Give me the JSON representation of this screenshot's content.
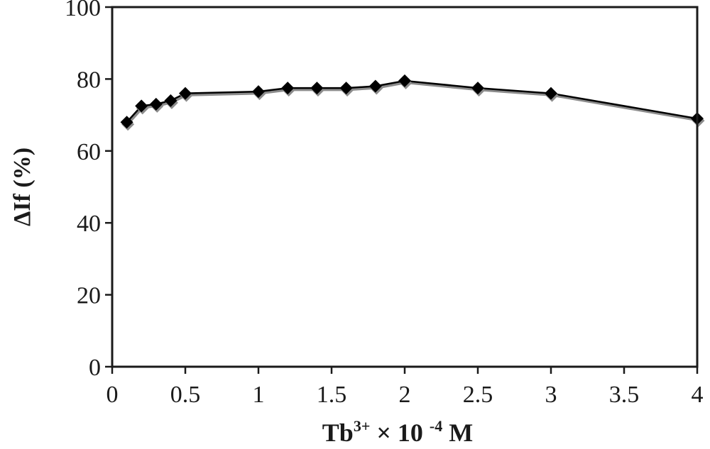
{
  "chart_data": {
    "type": "line",
    "title": "",
    "ylabel": "ΔIf (%)",
    "xlabel": {
      "base": "Tb",
      "sup": "3+",
      "middle": " × 10 ",
      "exp": "-4",
      "unit": " M"
    },
    "xlim": [
      0,
      4
    ],
    "ylim": [
      0,
      100
    ],
    "x_ticks": [
      0,
      0.5,
      1,
      1.5,
      2,
      2.5,
      3,
      3.5,
      4
    ],
    "x_tick_labels": [
      "0",
      "0.5",
      "1",
      "1.5",
      "2",
      "2.5",
      "3",
      "3.5",
      "4"
    ],
    "y_ticks": [
      0,
      20,
      40,
      60,
      80,
      100
    ],
    "y_tick_labels": [
      "0",
      "20",
      "40",
      "60",
      "80",
      "100"
    ],
    "grid": false,
    "series": [
      {
        "marker": "diamond",
        "color": "#000000",
        "x": [
          0.1,
          0.2,
          0.3,
          0.4,
          0.5,
          1.0,
          1.2,
          1.4,
          1.6,
          1.8,
          2.0,
          2.5,
          3.0,
          4.0
        ],
        "y": [
          68,
          72.5,
          73,
          74,
          76,
          76.5,
          77.5,
          77.5,
          77.5,
          78,
          79.5,
          77.5,
          76,
          69
        ]
      }
    ]
  }
}
